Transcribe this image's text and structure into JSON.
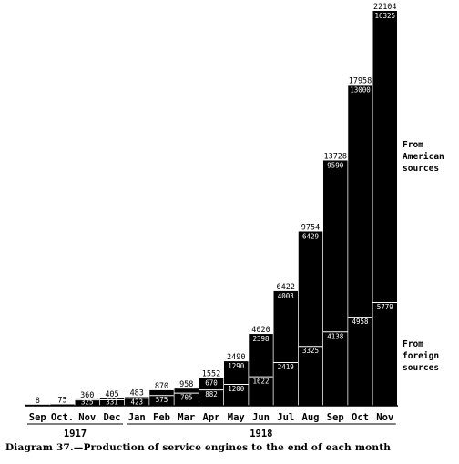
{
  "chart_data": {
    "type": "bar",
    "stacked": true,
    "months": [
      "Sep",
      "Oct.",
      "Nov",
      "Dec",
      "Jan",
      "Feb",
      "Mar",
      "Apr",
      "May",
      "Jun",
      "Jul",
      "Aug",
      "Sep",
      "Oct",
      "Nov"
    ],
    "years": [
      {
        "label": "1917",
        "months": 4
      },
      {
        "label": "1918",
        "months": 11
      }
    ],
    "totals": [
      8,
      75,
      360,
      405,
      483,
      870,
      958,
      1552,
      2490,
      4020,
      6422,
      9754,
      13728,
      17958,
      22104
    ],
    "total_labels": [
      "8",
      "75",
      "360",
      "405",
      "483",
      "870",
      "958",
      "1552",
      "2490",
      "4020",
      "6422",
      "9754",
      "13728",
      "17958",
      "22104"
    ],
    "series": [
      {
        "name": "From foreign sources",
        "values": [
          8,
          75,
          325,
          331,
          423,
          575,
          705,
          882,
          1200,
          1622,
          2419,
          3325,
          4138,
          4958,
          5779
        ],
        "labels": [
          "",
          "",
          "325",
          "331",
          "423",
          "575",
          "705",
          "882",
          "1200",
          "1622",
          "2419",
          "3325",
          "4138",
          "4958",
          "5779"
        ]
      },
      {
        "name": "From American sources",
        "values": [
          0,
          0,
          35,
          74,
          60,
          295,
          253,
          670,
          1290,
          2398,
          4003,
          6429,
          9590,
          13000,
          16325
        ],
        "labels": [
          "",
          "",
          "",
          "",
          "",
          "",
          "",
          "670",
          "1290",
          "2398",
          "4003",
          "6429",
          "9590",
          "13000",
          "16325"
        ]
      }
    ],
    "legend": {
      "american": [
        "From",
        "American",
        "sources"
      ],
      "foreign": [
        "From",
        "foreign",
        "sources"
      ]
    },
    "ylim": [
      0,
      22104
    ],
    "title": "Diagram 37.—Production of service engines to the end of each month",
    "grid": false
  }
}
